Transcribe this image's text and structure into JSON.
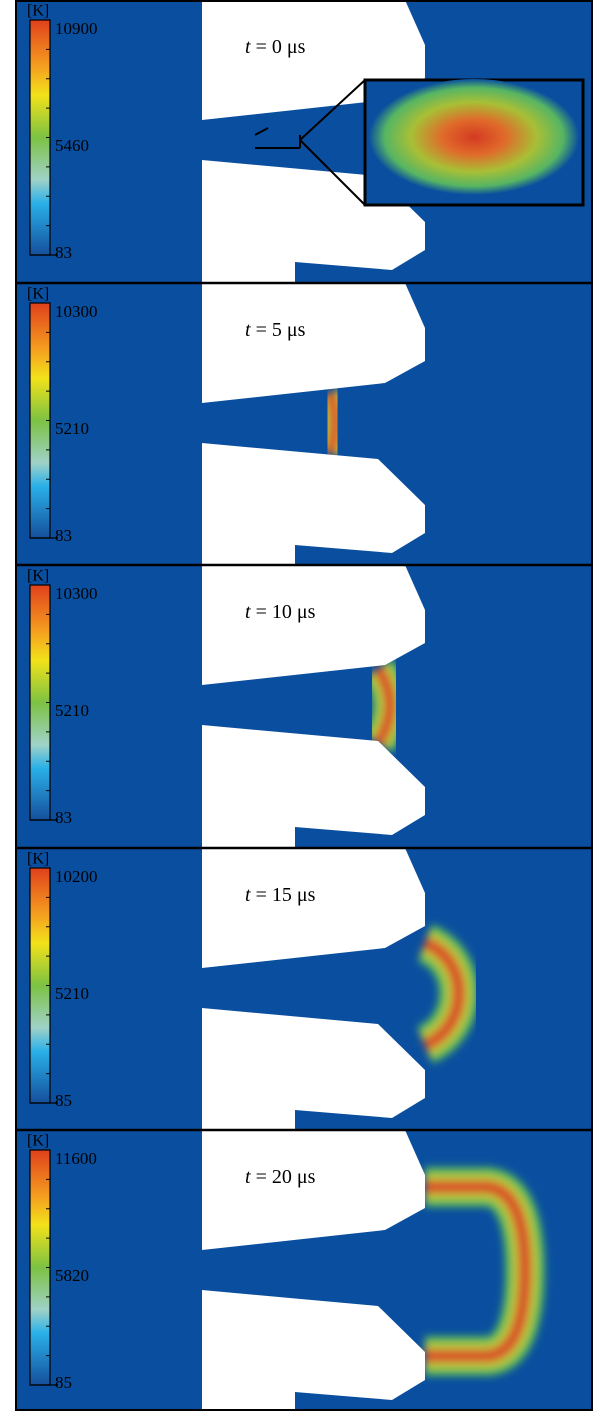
{
  "panels": [
    {
      "unit": "[K]",
      "max": 10900,
      "mid": 5460,
      "min": 83,
      "time_var": "t",
      "time_rest": "= 0 μs"
    },
    {
      "unit": "[K]",
      "max": 10300,
      "mid": 5210,
      "min": 83,
      "time_var": "t",
      "time_rest": "= 5 μs"
    },
    {
      "unit": "[K]",
      "max": 10300,
      "mid": 5210,
      "min": 83,
      "time_var": "t",
      "time_rest": "= 10 μs"
    },
    {
      "unit": "[K]",
      "max": 10200,
      "mid": 5210,
      "min": 85,
      "time_var": "t",
      "time_rest": "= 15 μs"
    },
    {
      "unit": "[K]",
      "max": 11600,
      "mid": 5820,
      "min": 85,
      "time_var": "t",
      "time_rest": "= 20 μs"
    }
  ]
}
